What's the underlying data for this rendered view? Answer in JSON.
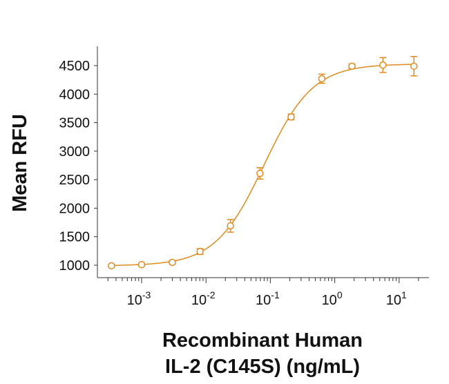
{
  "chart_data": {
    "type": "scatter",
    "title": "",
    "xlabel_line1": "Recombinant Human",
    "xlabel_line2": "IL-2 (C145S) (ng/mL)",
    "ylabel": "Mean RFU",
    "xscale": "log",
    "xlim": [
      0.0002,
      40
    ],
    "ylim": [
      870,
      4900
    ],
    "yticks": [
      1000,
      1500,
      2000,
      2500,
      3000,
      3500,
      4000,
      4500
    ],
    "ytick_labels": [
      "1000",
      "1500",
      "2000",
      "2500",
      "3000",
      "3500",
      "4000",
      "4500"
    ],
    "xticks": [
      {
        "base": "10",
        "exp": "-3",
        "value": 0.001
      },
      {
        "base": "10",
        "exp": "-2",
        "value": 0.01
      },
      {
        "base": "10",
        "exp": "-1",
        "value": 0.1
      },
      {
        "base": "10",
        "exp": "0",
        "value": 1
      },
      {
        "base": "10",
        "exp": "1",
        "value": 10
      }
    ],
    "color": "#E08A1E",
    "grid": false,
    "points": [
      {
        "x": 0.00034,
        "y": 990,
        "err": 20
      },
      {
        "x": 0.001,
        "y": 1010,
        "err": 20
      },
      {
        "x": 0.003,
        "y": 1050,
        "err": 30
      },
      {
        "x": 0.0081,
        "y": 1240,
        "err": 50
      },
      {
        "x": 0.024,
        "y": 1690,
        "err": 110
      },
      {
        "x": 0.069,
        "y": 2610,
        "err": 100
      },
      {
        "x": 0.21,
        "y": 3600,
        "err": 50
      },
      {
        "x": 0.63,
        "y": 4270,
        "err": 80
      },
      {
        "x": 1.85,
        "y": 4490,
        "err": 40
      },
      {
        "x": 5.6,
        "y": 4510,
        "err": 130
      },
      {
        "x": 17,
        "y": 4490,
        "err": 170
      }
    ],
    "fit": {
      "model": "4PL",
      "bottom": 990,
      "top": 4530,
      "ec50": 0.08,
      "hill": 1.15
    }
  }
}
